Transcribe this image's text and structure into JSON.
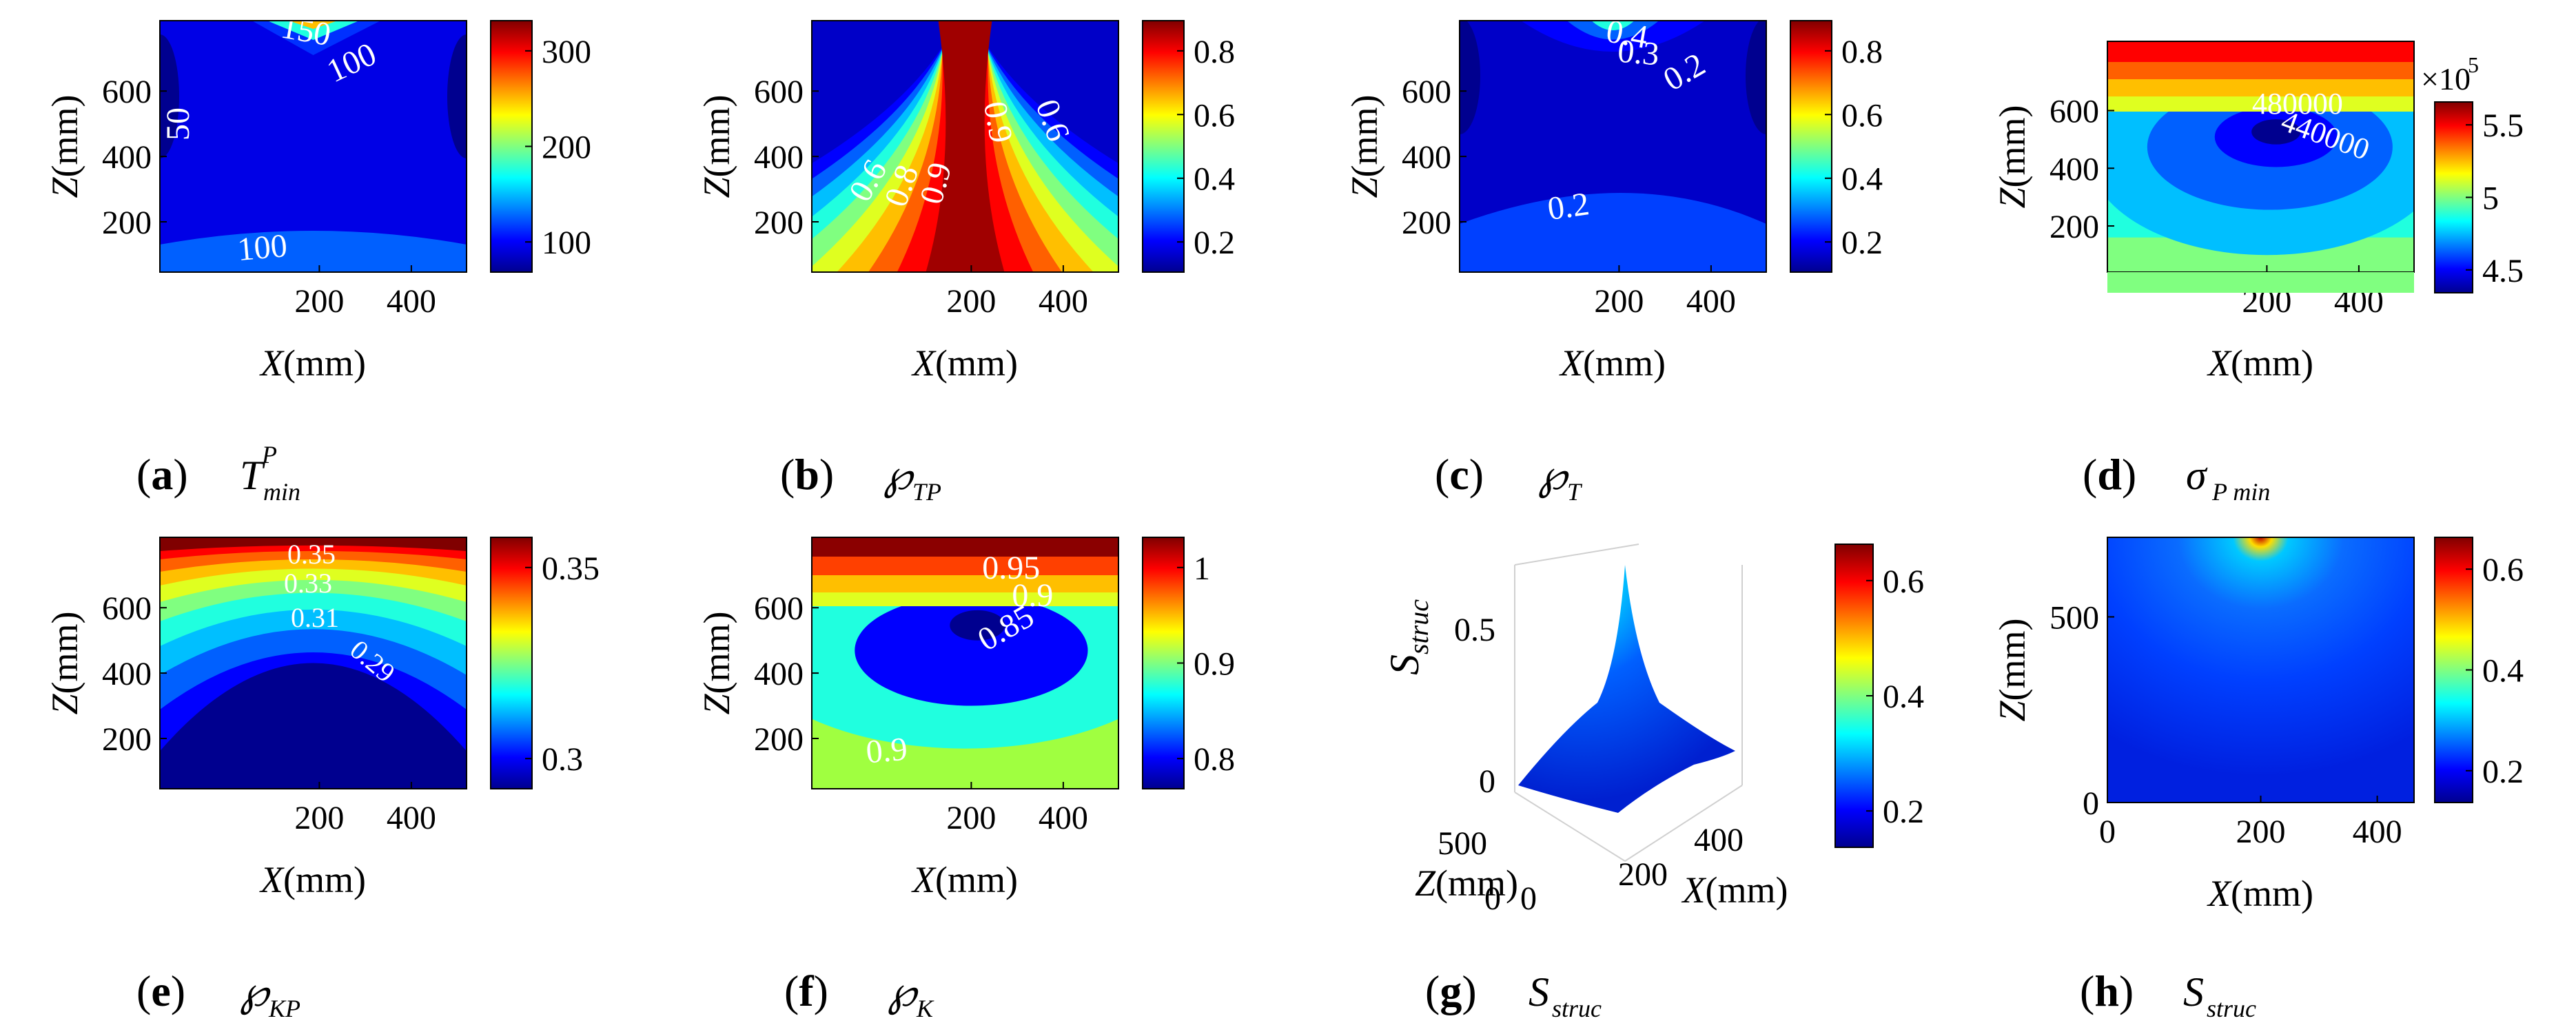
{
  "colormap": [
    "#00008f",
    "#0000ff",
    "#0060ff",
    "#00bfff",
    "#20ffdf",
    "#80ff80",
    "#dfff20",
    "#ffbf00",
    "#ff6000",
    "#ff0000",
    "#800000"
  ],
  "panels": [
    {
      "id": "a",
      "caption_label": "(a)",
      "caption_sym": "T",
      "caption_sup": "P",
      "caption_sub": "min",
      "xlabel_var": "X",
      "xlabel_unit": "(mm)",
      "ylabel_var": "Z",
      "ylabel_unit": "(mm)",
      "xticks": [
        "200",
        "400"
      ],
      "yticks": [
        "200",
        "400",
        "600"
      ],
      "cbar_ticks": [
        "100",
        "200",
        "300"
      ],
      "contour_labels": [
        "150",
        "100",
        "50",
        "100"
      ]
    },
    {
      "id": "b",
      "caption_label": "(b)",
      "caption_sym": "℘",
      "caption_sub": "TP",
      "xlabel_var": "X",
      "xlabel_unit": "(mm)",
      "ylabel_var": "Z",
      "ylabel_unit": "(mm)",
      "xticks": [
        "200",
        "400"
      ],
      "yticks": [
        "200",
        "400",
        "600"
      ],
      "cbar_ticks": [
        "0.2",
        "0.4",
        "0.6",
        "0.8"
      ],
      "contour_labels": [
        "0.6",
        "0.8",
        "0.9",
        "0.9",
        "0.6"
      ]
    },
    {
      "id": "c",
      "caption_label": "(c)",
      "caption_sym": "℘",
      "caption_sub": "T",
      "xlabel_var": "X",
      "xlabel_unit": "(mm)",
      "ylabel_var": "Z",
      "ylabel_unit": "(mm)",
      "xticks": [
        "200",
        "400"
      ],
      "yticks": [
        "200",
        "400",
        "600"
      ],
      "cbar_ticks": [
        "0.2",
        "0.4",
        "0.6",
        "0.8"
      ],
      "contour_labels": [
        "0.4",
        "0.3",
        "0.2",
        "0.2"
      ]
    },
    {
      "id": "d",
      "caption_label": "(d)",
      "caption_sym": "σ",
      "caption_sub": "P min",
      "xlabel_var": "X",
      "xlabel_unit": "(mm)",
      "ylabel_var": "Z",
      "ylabel_unit": "(mm)",
      "xticks": [
        "200",
        "400"
      ],
      "yticks": [
        "200",
        "400",
        "600"
      ],
      "cbar_ticks": [
        "4.5",
        "5",
        "5.5"
      ],
      "cbar_exponent": "×10",
      "cbar_exponent_pow": "5",
      "contour_labels": [
        "480000",
        "440000"
      ]
    },
    {
      "id": "e",
      "caption_label": "(e)",
      "caption_sym": "℘",
      "caption_sub": "KP",
      "xlabel_var": "X",
      "xlabel_unit": "(mm)",
      "ylabel_var": "Z",
      "ylabel_unit": "(mm)",
      "xticks": [
        "200",
        "400"
      ],
      "yticks": [
        "200",
        "400",
        "600"
      ],
      "cbar_ticks": [
        "0.3",
        "0.35"
      ],
      "contour_labels": [
        "0.35",
        "0.33",
        "0.31",
        "0.29"
      ]
    },
    {
      "id": "f",
      "caption_label": "(f)",
      "caption_sym": "℘",
      "caption_sub": "K",
      "xlabel_var": "X",
      "xlabel_unit": "(mm)",
      "ylabel_var": "Z",
      "ylabel_unit": "(mm)",
      "xticks": [
        "200",
        "400"
      ],
      "yticks": [
        "200",
        "400",
        "600"
      ],
      "cbar_ticks": [
        "0.8",
        "0.9",
        "1"
      ],
      "contour_labels": [
        "0.95",
        "0.9",
        "0.85",
        "0.9"
      ]
    },
    {
      "id": "g",
      "caption_label": "(g)",
      "caption_sym": "S",
      "caption_sub": "struc",
      "xlabel_var": "X",
      "xlabel_unit": "(mm)",
      "ylabel_var": "Z",
      "ylabel_unit": "(mm)",
      "zlabel_sym": "S",
      "zlabel_sub": "struc",
      "xticks": [
        "0",
        "200",
        "400"
      ],
      "yticks": [
        "0",
        "500"
      ],
      "zticks": [
        "0",
        "0.5"
      ],
      "cbar_ticks": [
        "0.2",
        "0.4",
        "0.6"
      ]
    },
    {
      "id": "h",
      "caption_label": "(h)",
      "caption_sym": "S",
      "caption_sub": "struc",
      "xlabel_var": "X",
      "xlabel_unit": "(mm)",
      "ylabel_var": "Z",
      "ylabel_unit": "(mm)",
      "xticks": [
        "0",
        "200",
        "400"
      ],
      "yticks": [
        "0",
        "500"
      ],
      "cbar_ticks": [
        "0.2",
        "0.4",
        "0.6"
      ]
    }
  ],
  "chart_data": [
    {
      "type": "heatmap",
      "panel": "a",
      "xlim": [
        0,
        470
      ],
      "ylim": [
        0,
        720
      ],
      "clim": [
        20,
        360
      ],
      "contour_levels": [
        50,
        100,
        150
      ],
      "grid": false
    },
    {
      "type": "heatmap",
      "panel": "b",
      "xlim": [
        0,
        470
      ],
      "ylim": [
        0,
        720
      ],
      "clim": [
        0.05,
        0.9
      ],
      "contour_levels": [
        0.6,
        0.8,
        0.9
      ],
      "grid": false
    },
    {
      "type": "heatmap",
      "panel": "c",
      "xlim": [
        0,
        470
      ],
      "ylim": [
        0,
        720
      ],
      "clim": [
        0.05,
        0.9
      ],
      "contour_levels": [
        0.2,
        0.3,
        0.4
      ],
      "grid": false
    },
    {
      "type": "heatmap",
      "panel": "d",
      "xlim": [
        0,
        470
      ],
      "ylim": [
        0,
        720
      ],
      "clim": [
        420000,
        560000
      ],
      "contour_levels": [
        440000,
        480000
      ],
      "grid": false
    },
    {
      "type": "heatmap",
      "panel": "e",
      "xlim": [
        0,
        470
      ],
      "ylim": [
        0,
        720
      ],
      "clim": [
        0.28,
        0.37
      ],
      "contour_levels": [
        0.29,
        0.31,
        0.33,
        0.35
      ],
      "grid": false
    },
    {
      "type": "heatmap",
      "panel": "f",
      "xlim": [
        0,
        470
      ],
      "ylim": [
        0,
        720
      ],
      "clim": [
        0.77,
        1.0
      ],
      "contour_levels": [
        0.85,
        0.9,
        0.95
      ],
      "grid": false
    },
    {
      "type": "heatmap",
      "panel": "g",
      "xlim": [
        0,
        470
      ],
      "ylim": [
        0,
        720
      ],
      "zlim": [
        0,
        0.65
      ],
      "clim": [
        0.02,
        0.62
      ],
      "surface": true,
      "peak": {
        "x": 235,
        "z": 720,
        "value": 0.6
      },
      "grid": true
    },
    {
      "type": "heatmap",
      "panel": "h",
      "xlim": [
        0,
        470
      ],
      "ylim": [
        0,
        720
      ],
      "clim": [
        0.02,
        0.62
      ],
      "peak": {
        "x": 235,
        "z": 720,
        "value": 0.6
      },
      "grid": false
    }
  ]
}
